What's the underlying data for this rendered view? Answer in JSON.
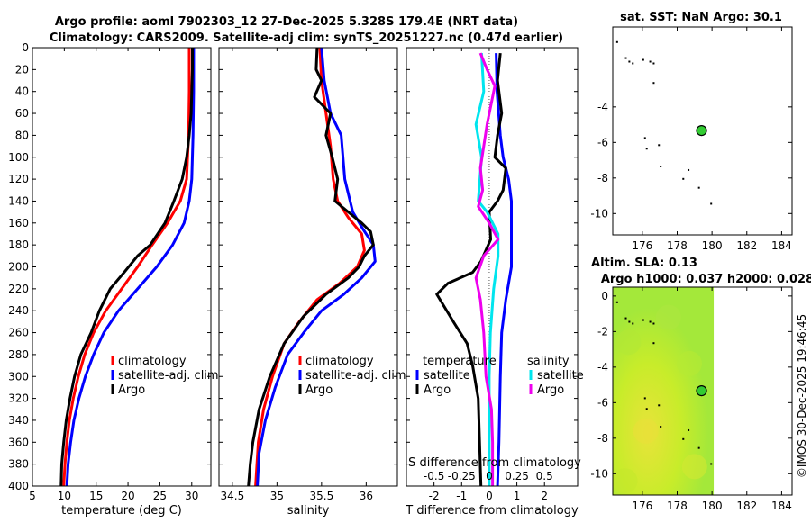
{
  "titles": {
    "line1": "Argo profile: aoml 7902303_12 27-Dec-2025 5.328S 179.4E (NRT data)",
    "line2": "Climatology: CARS2009. Satellite-adj clim: synTS_20251227.nc (0.47d earlier)",
    "sst_title": "sat. SST: NaN Argo: 30.1",
    "sla_title1": "Altim. SLA: 0.13",
    "sla_title2": "Argo h1000: 0.037 h2000: 0.028",
    "watermark": "©IMOS 30-Dec-2025 19:46:45"
  },
  "colors": {
    "climatology": "#ff0000",
    "satellite": "#0000ff",
    "argo": "#000000",
    "sal_satellite": "#00e5ee",
    "sal_argo": "#ee00ee",
    "marker": "#33cc33",
    "sla_field": "#c8ec2a"
  },
  "chart_data": [
    {
      "type": "line",
      "id": "temperature",
      "xlabel": "temperature (deg C)",
      "xlim": [
        5,
        33
      ],
      "ylim": [
        0,
        400
      ],
      "xticks": [
        "5",
        "10",
        "15",
        "20",
        "25",
        "30"
      ],
      "yticks": [
        "0",
        "20",
        "40",
        "60",
        "80",
        "100",
        "120",
        "140",
        "160",
        "180",
        "200",
        "220",
        "240",
        "260",
        "280",
        "300",
        "320",
        "340",
        "360",
        "380",
        "400"
      ],
      "legend": [
        "climatology",
        "satellite-adj. clim",
        "Argo"
      ],
      "series": [
        {
          "name": "climatology",
          "color": "climatology",
          "points": [
            [
              29.6,
              0
            ],
            [
              29.6,
              40
            ],
            [
              29.5,
              80
            ],
            [
              29.2,
              120
            ],
            [
              28.2,
              140
            ],
            [
              26.2,
              160
            ],
            [
              23.8,
              180
            ],
            [
              21.5,
              200
            ],
            [
              19,
              220
            ],
            [
              16.5,
              240
            ],
            [
              14.6,
              260
            ],
            [
              13.2,
              280
            ],
            [
              12.2,
              300
            ],
            [
              11.4,
              320
            ],
            [
              10.8,
              340
            ],
            [
              10.4,
              360
            ],
            [
              10.1,
              380
            ],
            [
              9.9,
              400
            ]
          ]
        },
        {
          "name": "satellite-adj. clim",
          "color": "satellite",
          "points": [
            [
              30.3,
              0
            ],
            [
              30.3,
              40
            ],
            [
              30.2,
              80
            ],
            [
              30,
              120
            ],
            [
              29.6,
              140
            ],
            [
              28.8,
              160
            ],
            [
              27,
              180
            ],
            [
              24.5,
              200
            ],
            [
              21.5,
              220
            ],
            [
              18.5,
              240
            ],
            [
              16.2,
              260
            ],
            [
              14.6,
              280
            ],
            [
              13.3,
              300
            ],
            [
              12.3,
              320
            ],
            [
              11.5,
              340
            ],
            [
              11,
              360
            ],
            [
              10.6,
              380
            ],
            [
              10.4,
              400
            ]
          ]
        },
        {
          "name": "Argo",
          "color": "argo",
          "points": [
            [
              30.1,
              0
            ],
            [
              30.1,
              20
            ],
            [
              29.9,
              60
            ],
            [
              29.6,
              80
            ],
            [
              29.2,
              100
            ],
            [
              28.5,
              120
            ],
            [
              27.2,
              140
            ],
            [
              25.8,
              160
            ],
            [
              23.5,
              180
            ],
            [
              21.5,
              190
            ],
            [
              19.4,
              205
            ],
            [
              17.2,
              220
            ],
            [
              15.5,
              240
            ],
            [
              14.2,
              260
            ],
            [
              12.6,
              280
            ],
            [
              11.6,
              300
            ],
            [
              10.9,
              320
            ],
            [
              10.3,
              340
            ],
            [
              9.9,
              360
            ],
            [
              9.6,
              380
            ],
            [
              9.5,
              400
            ]
          ]
        }
      ]
    },
    {
      "type": "line",
      "id": "salinity",
      "xlabel": "salinity",
      "xlim": [
        34.35,
        36.35
      ],
      "ylim": [
        0,
        400
      ],
      "xticks": [
        "34.5",
        "35",
        "35.5",
        "36"
      ],
      "legend": [
        "climatology",
        "satellite-adj. clim",
        "Argo"
      ],
      "series": [
        {
          "name": "climatology",
          "color": "climatology",
          "points": [
            [
              35.48,
              0
            ],
            [
              35.5,
              30
            ],
            [
              35.55,
              60
            ],
            [
              35.6,
              90
            ],
            [
              35.63,
              120
            ],
            [
              35.68,
              140
            ],
            [
              35.8,
              155
            ],
            [
              35.95,
              170
            ],
            [
              35.98,
              185
            ],
            [
              35.9,
              200
            ],
            [
              35.7,
              215
            ],
            [
              35.45,
              230
            ],
            [
              35.25,
              250
            ],
            [
              35.08,
              270
            ],
            [
              34.95,
              300
            ],
            [
              34.85,
              330
            ],
            [
              34.79,
              360
            ],
            [
              34.76,
              400
            ]
          ]
        },
        {
          "name": "satellite-adj. clim",
          "color": "satellite",
          "points": [
            [
              35.5,
              0
            ],
            [
              35.53,
              30
            ],
            [
              35.6,
              60
            ],
            [
              35.72,
              80
            ],
            [
              35.76,
              120
            ],
            [
              35.85,
              150
            ],
            [
              35.96,
              165
            ],
            [
              36.08,
              180
            ],
            [
              36.1,
              195
            ],
            [
              35.95,
              210
            ],
            [
              35.75,
              225
            ],
            [
              35.5,
              240
            ],
            [
              35.3,
              260
            ],
            [
              35.12,
              280
            ],
            [
              34.98,
              310
            ],
            [
              34.87,
              340
            ],
            [
              34.8,
              370
            ],
            [
              34.78,
              400
            ]
          ]
        },
        {
          "name": "Argo",
          "color": "argo",
          "points": [
            [
              35.45,
              0
            ],
            [
              35.44,
              20
            ],
            [
              35.5,
              30
            ],
            [
              35.42,
              45
            ],
            [
              35.6,
              60
            ],
            [
              35.55,
              80
            ],
            [
              35.62,
              100
            ],
            [
              35.68,
              120
            ],
            [
              35.65,
              140
            ],
            [
              35.8,
              150
            ],
            [
              35.95,
              160
            ],
            [
              36.05,
              168
            ],
            [
              36.08,
              180
            ],
            [
              35.98,
              190
            ],
            [
              35.92,
              200
            ],
            [
              35.8,
              210
            ],
            [
              35.55,
              225
            ],
            [
              35.3,
              245
            ],
            [
              35.08,
              270
            ],
            [
              34.92,
              300
            ],
            [
              34.8,
              330
            ],
            [
              34.73,
              360
            ],
            [
              34.7,
              380
            ],
            [
              34.68,
              400
            ]
          ]
        }
      ]
    },
    {
      "type": "line",
      "id": "difference",
      "xlabel": "T difference from climatology",
      "xlabel_top": "S difference from climatology",
      "xlim": [
        -3,
        3.2
      ],
      "xlim_top": [
        -0.75,
        0.8
      ],
      "ylim": [
        0,
        400
      ],
      "xticks": [
        "-2",
        "-1",
        "0",
        "1",
        "2"
      ],
      "xticks_top": [
        "-0.5",
        "-0.25",
        "0",
        "0.25",
        "0.5"
      ],
      "legend_left_title": "temperature",
      "legend_right_title": "salinity",
      "legend_left": [
        "satellite",
        "Argo"
      ],
      "legend_right": [
        "satellite",
        "Argo"
      ],
      "series": [
        {
          "name": "T satellite",
          "axis": "T",
          "color": "satellite",
          "points": [
            [
              0.25,
              5
            ],
            [
              0.28,
              40
            ],
            [
              0.4,
              80
            ],
            [
              0.5,
              100
            ],
            [
              0.7,
              120
            ],
            [
              0.8,
              140
            ],
            [
              0.8,
              160
            ],
            [
              0.8,
              200
            ],
            [
              0.6,
              230
            ],
            [
              0.45,
              260
            ],
            [
              0.4,
              300
            ],
            [
              0.35,
              360
            ],
            [
              0.3,
              400
            ]
          ]
        },
        {
          "name": "T Argo",
          "axis": "T",
          "color": "argo",
          "points": [
            [
              0.4,
              5
            ],
            [
              0.3,
              30
            ],
            [
              0.45,
              60
            ],
            [
              0.3,
              80
            ],
            [
              0.2,
              100
            ],
            [
              0.6,
              110
            ],
            [
              0.5,
              130
            ],
            [
              0.3,
              140
            ],
            [
              0,
              150
            ],
            [
              0.05,
              175
            ],
            [
              -0.3,
              195
            ],
            [
              -0.6,
              205
            ],
            [
              -1.5,
              215
            ],
            [
              -1.9,
              225
            ],
            [
              -1.3,
              250
            ],
            [
              -0.8,
              270
            ],
            [
              -0.6,
              290
            ],
            [
              -0.4,
              320
            ],
            [
              -0.35,
              360
            ],
            [
              -0.3,
              400
            ]
          ]
        },
        {
          "name": "S satellite",
          "axis": "S",
          "color": "sal_satellite",
          "points": [
            [
              -0.07,
              5
            ],
            [
              -0.05,
              40
            ],
            [
              -0.12,
              70
            ],
            [
              -0.07,
              100
            ],
            [
              -0.1,
              140
            ],
            [
              -0.02,
              150
            ],
            [
              0.08,
              170
            ],
            [
              0.08,
              190
            ],
            [
              0.04,
              220
            ],
            [
              0.01,
              260
            ],
            [
              0,
              300
            ],
            [
              0,
              360
            ],
            [
              0,
              400
            ]
          ]
        },
        {
          "name": "S Argo",
          "axis": "S",
          "color": "sal_argo",
          "points": [
            [
              -0.08,
              5
            ],
            [
              -0.02,
              20
            ],
            [
              0.05,
              35
            ],
            [
              0.02,
              50
            ],
            [
              -0.02,
              70
            ],
            [
              -0.05,
              90
            ],
            [
              -0.08,
              110
            ],
            [
              -0.06,
              130
            ],
            [
              -0.1,
              145
            ],
            [
              0,
              160
            ],
            [
              0.08,
              175
            ],
            [
              -0.05,
              190
            ],
            [
              -0.12,
              210
            ],
            [
              -0.08,
              230
            ],
            [
              -0.05,
              260
            ],
            [
              -0.03,
              300
            ],
            [
              0.02,
              330
            ],
            [
              0.03,
              360
            ],
            [
              0.03,
              400
            ]
          ]
        }
      ]
    },
    {
      "type": "scatter",
      "id": "sst_map",
      "xlim": [
        174.3,
        184.6
      ],
      "ylim": [
        -11.2,
        0.5
      ],
      "xticks": [
        "176",
        "178",
        "180",
        "182",
        "184"
      ],
      "yticks": [
        "-4",
        "-6",
        "-8",
        "-10"
      ],
      "argo_position": [
        179.4,
        -5.33
      ],
      "islands": [
        [
          174.5,
          -0.3
        ],
        [
          175,
          -1.2
        ],
        [
          175.2,
          -1.4
        ],
        [
          175.4,
          -1.5
        ],
        [
          176,
          -1.3
        ],
        [
          176.4,
          -1.4
        ],
        [
          176.6,
          -1.5
        ],
        [
          176.6,
          -2.6
        ],
        [
          176.1,
          -5.7
        ],
        [
          176.2,
          -6.3
        ],
        [
          176.9,
          -6.1
        ],
        [
          177,
          -7.3
        ],
        [
          178.6,
          -7.5
        ],
        [
          178.3,
          -8
        ],
        [
          179.2,
          -8.5
        ],
        [
          179.9,
          -9.4
        ]
      ]
    },
    {
      "type": "heatmap",
      "id": "sla_map",
      "xlim": [
        174.3,
        184.6
      ],
      "ylim": [
        -11.2,
        0.5
      ],
      "xticks": [
        "176",
        "178",
        "180",
        "182",
        "184"
      ],
      "yticks": [
        "0",
        "-2",
        "-4",
        "-6",
        "-8",
        "-10"
      ],
      "data_extent_lon": [
        174.3,
        180.1
      ],
      "argo_position": [
        179.4,
        -5.33
      ]
    }
  ]
}
